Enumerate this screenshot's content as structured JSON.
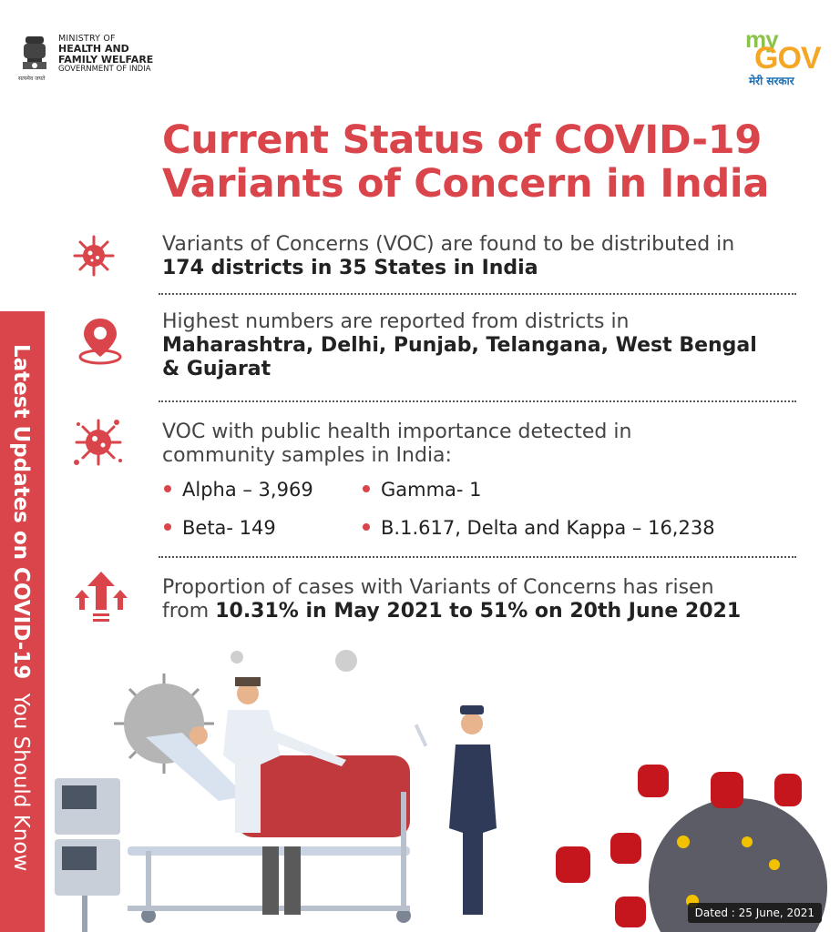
{
  "header": {
    "ministry_line1": "MINISTRY OF",
    "ministry_line2": "HEALTH AND",
    "ministry_line3": "FAMILY WELFARE",
    "ministry_line4": "GOVERNMENT OF INDIA",
    "emblem_motto": "सत्यमेव जयते",
    "logo_my": "my",
    "logo_gov": "GOV",
    "logo_tagline": "मेरी सरकार"
  },
  "title": {
    "line1": "Current Status of COVID-19",
    "line2": "Variants of Concern in India"
  },
  "sidebar": {
    "bold_text": "Latest Updates on COVID-19",
    "regular_text": "You Should Know"
  },
  "items": [
    {
      "icon": "virus-icon",
      "text": "Variants of Concerns (VOC) are found to be distributed in",
      "bold": "174 districts in 35 States in India"
    },
    {
      "icon": "location-pin-icon",
      "text": "Highest numbers are reported from districts in",
      "bold_line1": "Maharashtra, Delhi, Punjab, Telangana, West Bengal",
      "bold_line2": "& Gujarat"
    },
    {
      "icon": "virus-spread-icon",
      "text_line1": "VOC with public health importance detected in",
      "text_line2": "community samples in India:",
      "variants": [
        "Alpha – 3,969",
        "Gamma- 1",
        "Beta- 149",
        "B.1.617, Delta and Kappa – 16,238"
      ]
    },
    {
      "icon": "rising-arrows-icon",
      "text": "Proportion of cases with Variants of Concerns has risen",
      "prefix": "from",
      "bold": "10.31% in May 2021 to 51% on 20th June 2021"
    }
  ],
  "footer": {
    "dated": "Dated : 25 June, 2021"
  },
  "colors": {
    "accent": "#d9454a",
    "text": "#444444"
  }
}
